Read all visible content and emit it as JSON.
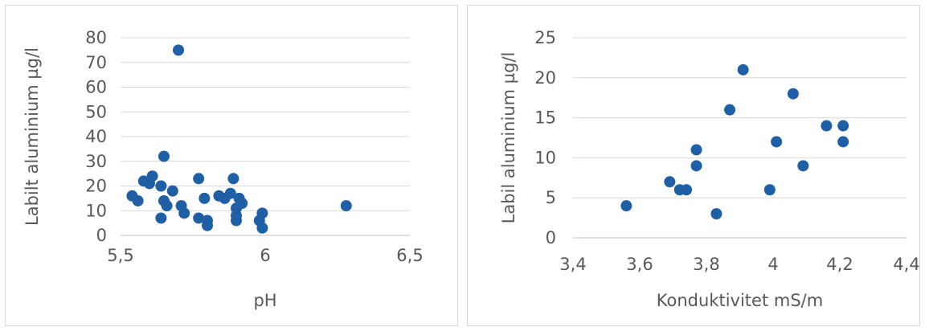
{
  "chart_data": [
    {
      "type": "scatter",
      "title": "",
      "xlabel": "pH",
      "ylabel": "Labilt aluminium µg/l",
      "xlim": [
        5.5,
        6.5
      ],
      "ylim": [
        0,
        80
      ],
      "xticks": [
        5.5,
        6,
        6.5
      ],
      "xtick_labels": [
        "5,5",
        "6",
        "6,5"
      ],
      "yticks": [
        0,
        10,
        20,
        30,
        40,
        50,
        60,
        70,
        80
      ],
      "ytick_labels": [
        "0",
        "10",
        "20",
        "30",
        "40",
        "50",
        "60",
        "70",
        "80"
      ],
      "grid": true,
      "legend": "none",
      "marker_color": "#1f5fa6",
      "points": [
        [
          5.54,
          16
        ],
        [
          5.56,
          14
        ],
        [
          5.58,
          22
        ],
        [
          5.6,
          21
        ],
        [
          5.61,
          24
        ],
        [
          5.64,
          20
        ],
        [
          5.64,
          7
        ],
        [
          5.65,
          32
        ],
        [
          5.65,
          14
        ],
        [
          5.66,
          12
        ],
        [
          5.68,
          18
        ],
        [
          5.7,
          75
        ],
        [
          5.71,
          12
        ],
        [
          5.72,
          9
        ],
        [
          5.77,
          23
        ],
        [
          5.77,
          7
        ],
        [
          5.79,
          15
        ],
        [
          5.8,
          6
        ],
        [
          5.8,
          4
        ],
        [
          5.84,
          16
        ],
        [
          5.86,
          15
        ],
        [
          5.88,
          17
        ],
        [
          5.89,
          23
        ],
        [
          5.9,
          11
        ],
        [
          5.9,
          8
        ],
        [
          5.9,
          6
        ],
        [
          5.91,
          15
        ],
        [
          5.92,
          13
        ],
        [
          5.98,
          6
        ],
        [
          5.99,
          9
        ],
        [
          5.99,
          3
        ],
        [
          6.28,
          12
        ]
      ]
    },
    {
      "type": "scatter",
      "title": "",
      "xlabel": "Konduktivitet mS/m",
      "ylabel": "Labil aluminium µg/l",
      "xlim": [
        3.4,
        4.4
      ],
      "ylim": [
        0,
        25
      ],
      "xticks": [
        3.4,
        3.6,
        3.8,
        4.0,
        4.2,
        4.4
      ],
      "xtick_labels": [
        "3,4",
        "3,6",
        "3,8",
        "4",
        "4,2",
        "4,4"
      ],
      "yticks": [
        0,
        5,
        10,
        15,
        20,
        25
      ],
      "ytick_labels": [
        "0",
        "5",
        "10",
        "15",
        "20",
        "25"
      ],
      "grid": true,
      "legend": "none",
      "marker_color": "#1f5fa6",
      "points": [
        [
          3.56,
          4
        ],
        [
          3.69,
          7
        ],
        [
          3.72,
          6
        ],
        [
          3.74,
          6
        ],
        [
          3.77,
          11
        ],
        [
          3.77,
          9
        ],
        [
          3.83,
          3
        ],
        [
          3.87,
          16
        ],
        [
          3.91,
          21
        ],
        [
          3.99,
          6
        ],
        [
          4.01,
          12
        ],
        [
          4.06,
          18
        ],
        [
          4.09,
          9
        ],
        [
          4.16,
          14
        ],
        [
          4.21,
          14
        ],
        [
          4.21,
          12
        ]
      ]
    }
  ]
}
